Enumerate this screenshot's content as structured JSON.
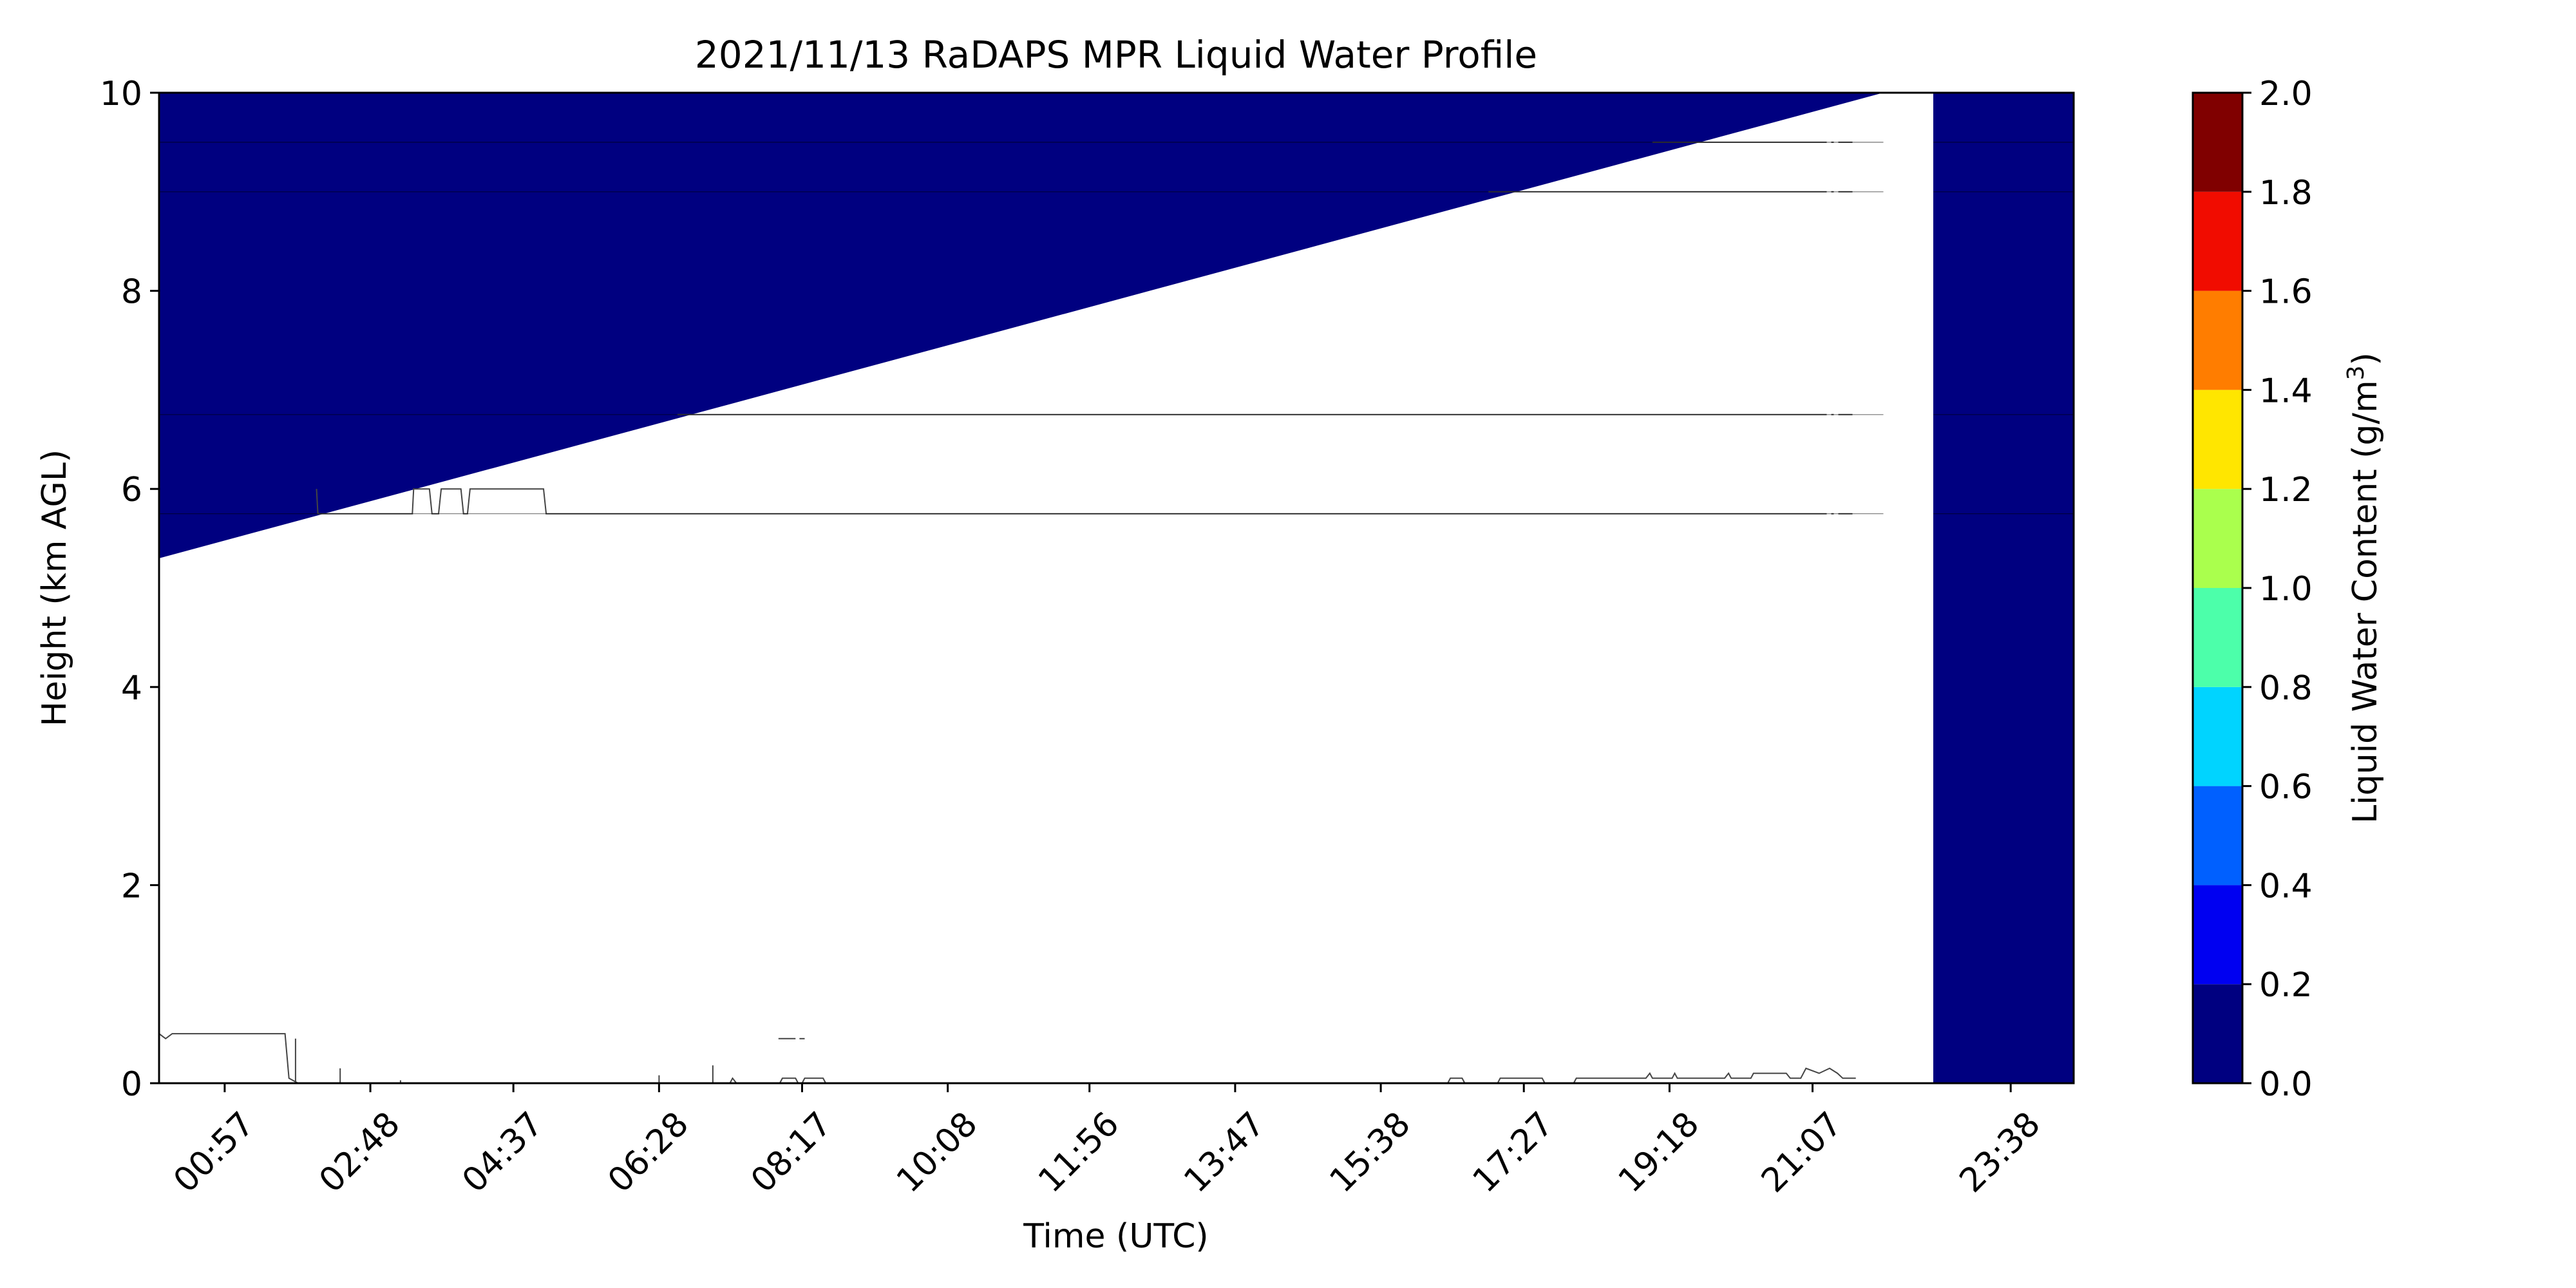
{
  "chart_data": {
    "type": "heatmap",
    "title": "2021/11/13 RaDAPS MPR Liquid Water Profile",
    "xlabel": "Time (UTC)",
    "ylabel": "Height (km AGL)",
    "ylim": [
      0,
      10
    ],
    "xlim": [
      "00:07",
      "24:26"
    ],
    "x_ticks": [
      "00:57",
      "02:48",
      "04:37",
      "06:28",
      "08:17",
      "10:08",
      "11:56",
      "13:47",
      "15:38",
      "17:27",
      "19:18",
      "21:07",
      "23:38"
    ],
    "y_ticks": [
      "0",
      "2",
      "4",
      "6",
      "8",
      "10"
    ],
    "colorbar": {
      "label": "Liquid Water Content (g/m",
      "label_sup": "3",
      "label_end": ")",
      "ticks": [
        "0.0",
        "0.2",
        "0.4",
        "0.6",
        "0.8",
        "1.0",
        "1.2",
        "1.4",
        "1.6",
        "1.8",
        "2.0"
      ],
      "bins": [
        {
          "min": 0.0,
          "max": 0.2,
          "color": "#000080"
        },
        {
          "min": 0.2,
          "max": 0.4,
          "color": "#0000f1"
        },
        {
          "min": 0.4,
          "max": 0.6,
          "color": "#0060ff"
        },
        {
          "min": 0.6,
          "max": 0.8,
          "color": "#00d4ff"
        },
        {
          "min": 0.8,
          "max": 1.0,
          "color": "#4cffaa"
        },
        {
          "min": 1.0,
          "max": 1.2,
          "color": "#aaff4d"
        },
        {
          "min": 1.2,
          "max": 1.4,
          "color": "#ffe600"
        },
        {
          "min": 1.4,
          "max": 1.6,
          "color": "#ff7d00"
        },
        {
          "min": 1.6,
          "max": 1.8,
          "color": "#f10c00"
        },
        {
          "min": 1.8,
          "max": 2.0,
          "color": "#800000"
        }
      ]
    },
    "regions": [
      {
        "shape": "triangle",
        "value_bin": "0.0-0.2",
        "corners": [
          [
            "00:07",
            5.3
          ],
          [
            "00:07",
            10.0
          ],
          [
            "22:01",
            10.0
          ]
        ]
      },
      {
        "shape": "rectangle",
        "value_bin": "0.0-0.2",
        "x_range": [
          "22:39",
          "24:26"
        ],
        "y_range": [
          0,
          10
        ]
      }
    ],
    "contours": [
      {
        "points": [
          [
            "00:07",
            0.5
          ],
          [
            "00:12",
            0.45
          ],
          [
            "00:17",
            0.5
          ],
          [
            "01:43",
            0.5
          ],
          [
            "01:46",
            0.05
          ],
          [
            "01:53",
            0.0
          ]
        ]
      },
      {
        "points": [
          [
            "01:51",
            0.45
          ],
          [
            "01:51",
            0.0
          ]
        ]
      },
      {
        "points": [
          [
            "02:25",
            0.15
          ],
          [
            "02:25",
            0.0
          ]
        ]
      },
      {
        "points": [
          [
            "03:11",
            0.0
          ],
          [
            "03:11",
            0.03
          ]
        ]
      },
      {
        "points": [
          [
            "06:28",
            0.0
          ],
          [
            "06:28",
            0.08
          ]
        ]
      },
      {
        "points": [
          [
            "07:09",
            0.0
          ],
          [
            "07:09",
            0.18
          ]
        ]
      },
      {
        "points": [
          [
            "07:22",
            0.0
          ],
          [
            "07:24",
            0.05
          ],
          [
            "07:27",
            0.0
          ]
        ]
      },
      {
        "points": [
          [
            "08:00",
            0.0
          ],
          [
            "08:02",
            0.05
          ],
          [
            "08:12",
            0.05
          ],
          [
            "08:14",
            0.0
          ]
        ]
      },
      {
        "points": [
          [
            "08:17",
            0.0
          ],
          [
            "08:19",
            0.05
          ],
          [
            "08:33",
            0.05
          ],
          [
            "08:35",
            0.0
          ]
        ]
      },
      {
        "points": [
          [
            "07:59",
            0.45
          ],
          [
            "08:12",
            0.45
          ]
        ]
      },
      {
        "points": [
          [
            "08:15",
            0.45
          ],
          [
            "08:19",
            0.45
          ]
        ]
      },
      {
        "points": [
          [
            "16:29",
            0.0
          ],
          [
            "16:31",
            0.05
          ],
          [
            "16:40",
            0.05
          ],
          [
            "16:42",
            0.0
          ]
        ]
      },
      {
        "points": [
          [
            "17:07",
            0.0
          ],
          [
            "17:09",
            0.05
          ],
          [
            "17:41",
            0.05
          ],
          [
            "17:43",
            0.0
          ]
        ]
      },
      {
        "points": [
          [
            "18:05",
            0.0
          ],
          [
            "18:07",
            0.05
          ],
          [
            "19:00",
            0.05
          ],
          [
            "19:03",
            0.1
          ],
          [
            "19:05",
            0.05
          ],
          [
            "19:20",
            0.05
          ],
          [
            "19:22",
            0.1
          ],
          [
            "19:24",
            0.05
          ],
          [
            "20:00",
            0.05
          ],
          [
            "20:03",
            0.1
          ],
          [
            "20:05",
            0.05
          ],
          [
            "20:20",
            0.05
          ],
          [
            "20:22",
            0.1
          ],
          [
            "20:47",
            0.1
          ],
          [
            "20:50",
            0.05
          ],
          [
            "20:58",
            0.05
          ],
          [
            "21:02",
            0.15
          ],
          [
            "21:12",
            0.1
          ],
          [
            "21:20",
            0.15
          ],
          [
            "21:26",
            0.1
          ],
          [
            "21:30",
            0.05
          ],
          [
            "21:40",
            0.05
          ]
        ]
      },
      {
        "points": [
          [
            "02:07",
            6.0
          ],
          [
            "02:08",
            5.75
          ],
          [
            "03:20",
            5.75
          ],
          [
            "03:21",
            6.0
          ],
          [
            "03:33",
            6.0
          ],
          [
            "03:35",
            5.75
          ],
          [
            "03:40",
            5.75
          ],
          [
            "03:42",
            6.0
          ],
          [
            "03:57",
            6.0
          ],
          [
            "03:59",
            5.75
          ],
          [
            "04:02",
            5.75
          ],
          [
            "04:04",
            6.0
          ],
          [
            "05:00",
            6.0
          ],
          [
            "05:02",
            5.75
          ],
          [
            "21:07",
            5.75
          ]
        ]
      },
      {
        "points": [
          [
            "06:42",
            6.75
          ],
          [
            "21:07",
            6.75
          ]
        ]
      },
      {
        "points": [
          [
            "17:00",
            9.0
          ],
          [
            "21:07",
            9.0
          ]
        ]
      },
      {
        "points": [
          [
            "19:05",
            9.5
          ],
          [
            "21:07",
            9.5
          ]
        ]
      },
      {
        "points": [
          [
            "21:07",
            9.5
          ],
          [
            "21:40",
            9.5
          ]
        ],
        "dashed": true
      },
      {
        "points": [
          [
            "21:07",
            9.0
          ],
          [
            "21:40",
            9.0
          ]
        ],
        "dashed": true
      },
      {
        "points": [
          [
            "21:07",
            6.75
          ],
          [
            "21:40",
            6.75
          ]
        ],
        "dashed": true
      },
      {
        "points": [
          [
            "21:07",
            5.75
          ],
          [
            "21:40",
            5.75
          ]
        ],
        "dashed": true
      },
      {
        "points": [
          [
            "00:07",
            9.5
          ],
          [
            "22:01",
            9.5
          ]
        ],
        "in_fill": true
      },
      {
        "points": [
          [
            "00:07",
            9.0
          ],
          [
            "22:01",
            9.0
          ]
        ],
        "in_fill": true
      },
      {
        "points": [
          [
            "00:07",
            6.75
          ],
          [
            "22:01",
            6.75
          ]
        ],
        "in_fill": true
      },
      {
        "points": [
          [
            "00:07",
            5.75
          ],
          [
            "22:01",
            5.75
          ]
        ],
        "in_fill": true
      },
      {
        "points": [
          [
            "22:39",
            9.5
          ],
          [
            "24:26",
            9.5
          ]
        ],
        "in_fill": true
      },
      {
        "points": [
          [
            "22:39",
            9.0
          ],
          [
            "24:26",
            9.0
          ]
        ],
        "in_fill": true
      },
      {
        "points": [
          [
            "22:39",
            6.75
          ],
          [
            "24:26",
            6.75
          ]
        ],
        "in_fill": true
      },
      {
        "points": [
          [
            "22:39",
            5.75
          ],
          [
            "24:26",
            5.75
          ]
        ],
        "in_fill": true
      }
    ],
    "grid": false,
    "legend": "colorbar-right"
  }
}
